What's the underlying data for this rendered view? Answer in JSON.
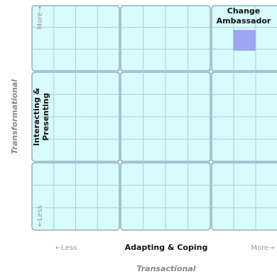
{
  "y_axis": {
    "title": "Transformational",
    "label": "Interacting & Presenting",
    "low": "←Less",
    "high": "More→"
  },
  "x_axis": {
    "title": "Transactional",
    "label": "Adapting & Coping",
    "low": "←Less",
    "high": "More→"
  },
  "marker": {
    "label_lines": [
      "Change",
      "Ambassador"
    ]
  }
}
